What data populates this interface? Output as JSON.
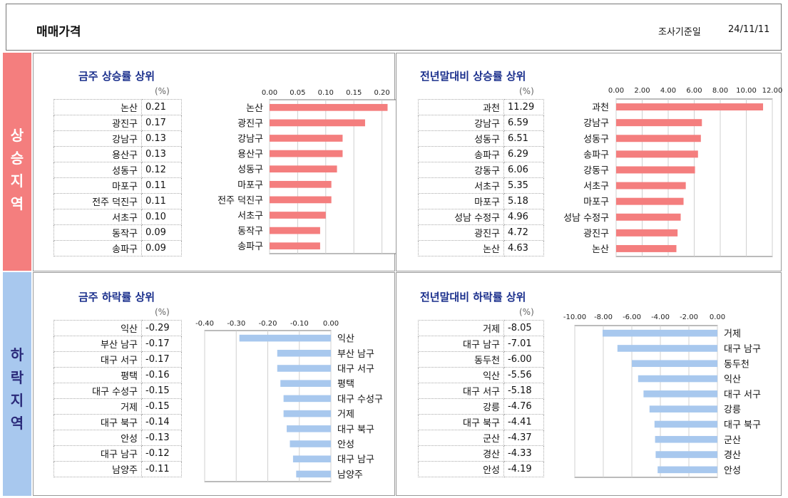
{
  "header": {
    "title": "매매가격",
    "date_label": "조사기준일",
    "date_value": "24/11/11"
  },
  "bands": {
    "rise": "상승지역",
    "fall": "하락지역"
  },
  "unit": "(%)",
  "sections": [
    {
      "title": "금주 상승률 상위",
      "rows": [
        {
          "name": "논산",
          "value": "0.21"
        },
        {
          "name": "광진구",
          "value": "0.17"
        },
        {
          "name": "강남구",
          "value": "0.13"
        },
        {
          "name": "용산구",
          "value": "0.13"
        },
        {
          "name": "성동구",
          "value": "0.12"
        },
        {
          "name": "마포구",
          "value": "0.11"
        },
        {
          "name": "전주 덕진구",
          "value": "0.11"
        },
        {
          "name": "서초구",
          "value": "0.10"
        },
        {
          "name": "동작구",
          "value": "0.09"
        },
        {
          "name": "송파구",
          "value": "0.09"
        }
      ]
    },
    {
      "title": "전년말대비 상승률 상위",
      "rows": [
        {
          "name": "과천",
          "value": "11.29"
        },
        {
          "name": "강남구",
          "value": "6.59"
        },
        {
          "name": "성동구",
          "value": "6.51"
        },
        {
          "name": "송파구",
          "value": "6.29"
        },
        {
          "name": "강동구",
          "value": "6.06"
        },
        {
          "name": "서초구",
          "value": "5.35"
        },
        {
          "name": "마포구",
          "value": "5.18"
        },
        {
          "name": "성남 수정구",
          "value": "4.96"
        },
        {
          "name": "광진구",
          "value": "4.72"
        },
        {
          "name": "논산",
          "value": "4.63"
        }
      ]
    },
    {
      "title": "금주 하락률 상위",
      "rows": [
        {
          "name": "익산",
          "value": "-0.29"
        },
        {
          "name": "부산 남구",
          "value": "-0.17"
        },
        {
          "name": "대구 서구",
          "value": "-0.17"
        },
        {
          "name": "평택",
          "value": "-0.16"
        },
        {
          "name": "대구 수성구",
          "value": "-0.15"
        },
        {
          "name": "거제",
          "value": "-0.15"
        },
        {
          "name": "대구 북구",
          "value": "-0.14"
        },
        {
          "name": "안성",
          "value": "-0.13"
        },
        {
          "name": "대구 남구",
          "value": "-0.12"
        },
        {
          "name": "남양주",
          "value": "-0.11"
        }
      ]
    },
    {
      "title": "전년말대비 하락률 상위",
      "rows": [
        {
          "name": "거제",
          "value": "-8.05"
        },
        {
          "name": "대구 남구",
          "value": "-7.01"
        },
        {
          "name": "동두천",
          "value": "-6.00"
        },
        {
          "name": "익산",
          "value": "-5.56"
        },
        {
          "name": "대구 서구",
          "value": "-5.18"
        },
        {
          "name": "강릉",
          "value": "-4.76"
        },
        {
          "name": "대구 북구",
          "value": "-4.41"
        },
        {
          "name": "군산",
          "value": "-4.37"
        },
        {
          "name": "경산",
          "value": "-4.33"
        },
        {
          "name": "안성",
          "value": "-4.19"
        }
      ]
    }
  ],
  "chart_data": [
    {
      "type": "bar",
      "orientation": "horizontal",
      "color": "#f47e7e",
      "categories": [
        "논산",
        "광진구",
        "강남구",
        "용산구",
        "성동구",
        "마포구",
        "전주 덕진구",
        "서초구",
        "동작구",
        "송파구"
      ],
      "values": [
        0.21,
        0.17,
        0.13,
        0.13,
        0.12,
        0.11,
        0.11,
        0.1,
        0.09,
        0.09
      ],
      "xlim": [
        0,
        0.25
      ],
      "ticks": [
        "0.00",
        "0.05",
        "0.10",
        "0.15",
        "0.20",
        "0.25"
      ],
      "label_side": "left"
    },
    {
      "type": "bar",
      "orientation": "horizontal",
      "color": "#f47e7e",
      "categories": [
        "과천",
        "강남구",
        "성동구",
        "송파구",
        "강동구",
        "서초구",
        "마포구",
        "성남 수정구",
        "광진구",
        "논산"
      ],
      "values": [
        11.29,
        6.59,
        6.51,
        6.29,
        6.06,
        5.35,
        5.18,
        4.96,
        4.72,
        4.63
      ],
      "xlim": [
        0,
        12
      ],
      "ticks": [
        "0.00",
        "2.00",
        "4.00",
        "6.00",
        "8.00",
        "10.00",
        "12.00"
      ],
      "label_side": "left"
    },
    {
      "type": "bar",
      "orientation": "horizontal",
      "color": "#a8c8ee",
      "categories": [
        "익산",
        "부산 남구",
        "대구 서구",
        "평택",
        "대구 수성구",
        "거제",
        "대구 북구",
        "안성",
        "대구 남구",
        "남양주"
      ],
      "values": [
        -0.29,
        -0.17,
        -0.17,
        -0.16,
        -0.15,
        -0.15,
        -0.14,
        -0.13,
        -0.12,
        -0.11
      ],
      "xlim": [
        -0.4,
        0
      ],
      "ticks": [
        "-0.40",
        "-0.30",
        "-0.20",
        "-0.10",
        "0.00"
      ],
      "label_side": "right"
    },
    {
      "type": "bar",
      "orientation": "horizontal",
      "color": "#a8c8ee",
      "categories": [
        "거제",
        "대구 남구",
        "동두천",
        "익산",
        "대구 서구",
        "강릉",
        "대구 북구",
        "군산",
        "경산",
        "안성"
      ],
      "values": [
        -8.05,
        -7.01,
        -6.0,
        -5.56,
        -5.18,
        -4.76,
        -4.41,
        -4.37,
        -4.33,
        -4.19
      ],
      "xlim": [
        -10,
        0
      ],
      "ticks": [
        "-10.00",
        "-8.00",
        "-6.00",
        "-4.00",
        "-2.00",
        "0.00"
      ],
      "label_side": "right"
    }
  ]
}
